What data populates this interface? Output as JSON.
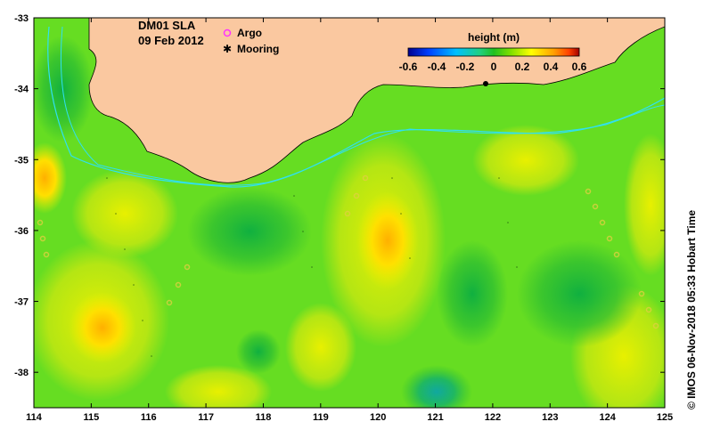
{
  "title": {
    "product": "DM01 SLA",
    "date": "09 Feb 2012"
  },
  "legend": {
    "argo_label": "Argo",
    "mooring_label": "Mooring",
    "argo_color": "#ff33ff",
    "mooring_color": "#000000"
  },
  "colorbar": {
    "label": "height (m)",
    "ticks": [
      "-0.6",
      "-0.4",
      "-0.2",
      "0",
      "0.2",
      "0.4",
      "0.6"
    ],
    "min": -0.6,
    "max": 0.6,
    "colors": [
      "#00008f",
      "#0040ff",
      "#00c0ff",
      "#20d080",
      "#20c020",
      "#80e000",
      "#ffff00",
      "#ffa000",
      "#ff4000",
      "#a00000"
    ]
  },
  "axes": {
    "x_ticks": [
      "114",
      "115",
      "116",
      "117",
      "118",
      "119",
      "120",
      "121",
      "122",
      "123",
      "124",
      "125"
    ],
    "y_ticks": [
      "-33",
      "-34",
      "-35",
      "-36",
      "-37",
      "-38"
    ],
    "x_range": [
      114,
      125
    ],
    "y_range": [
      -38.5,
      -33
    ]
  },
  "credit": "© IMOS 06-Nov-2018 05:33 Hobart Time",
  "colors": {
    "land": "#fac8a0",
    "field_base": "#66dd22",
    "contour_line": "#30e0f0"
  }
}
